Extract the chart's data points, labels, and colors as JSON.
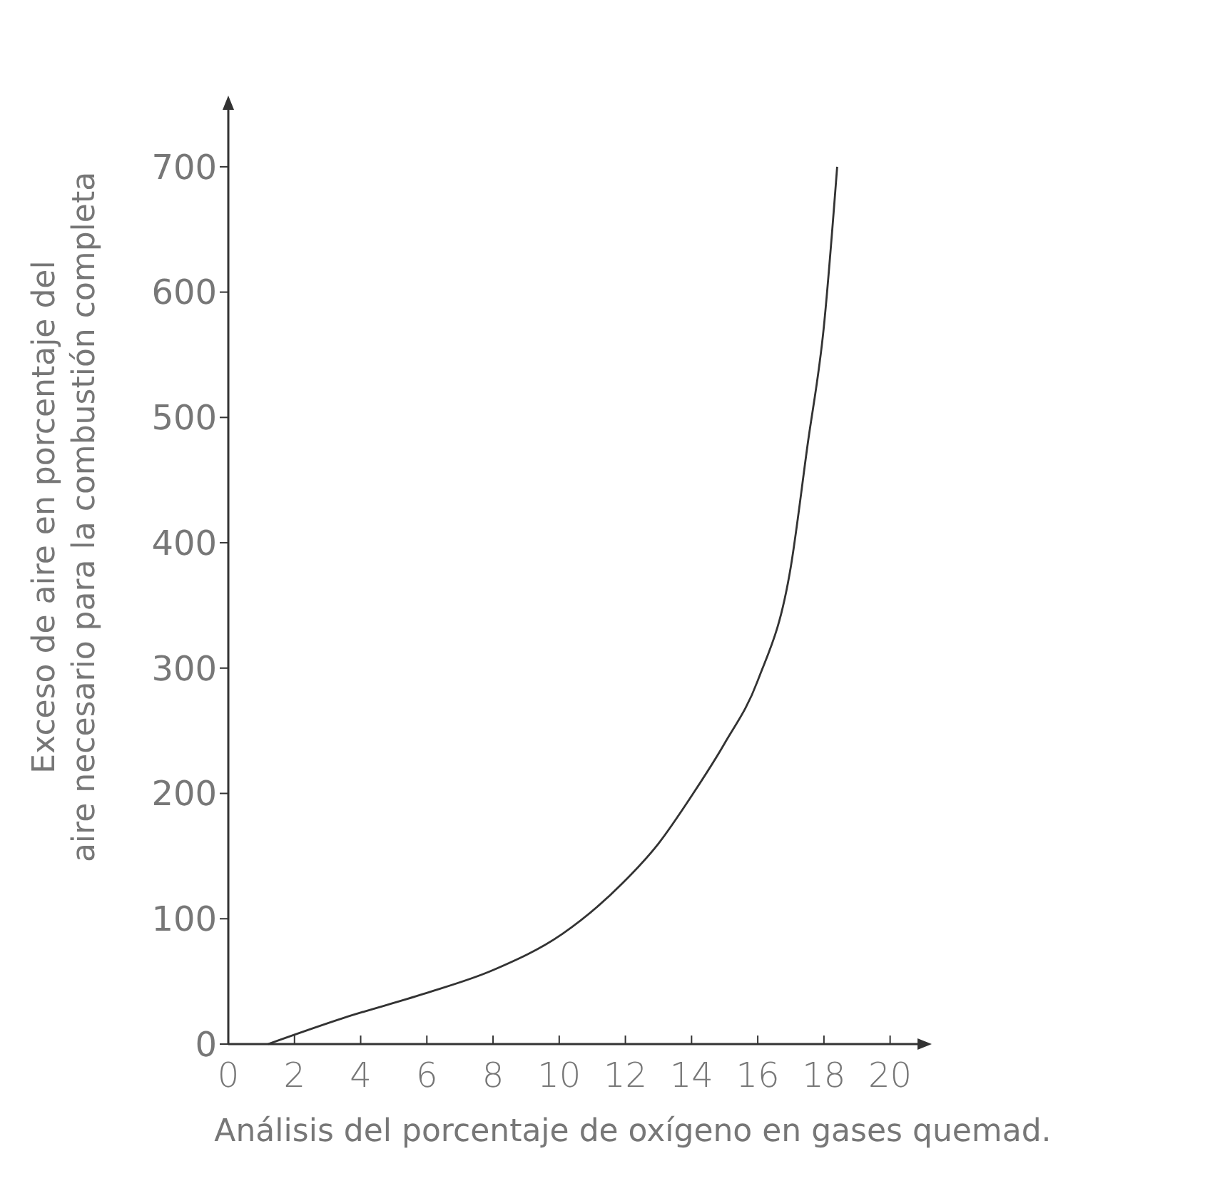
{
  "chart_data": {
    "type": "line",
    "xlabel": "Análisis del porcentaje de oxígeno en gases quemad.",
    "ylabel": "Exceso de aire en porcentaje del\naire necesario para la combustión completa",
    "x": [
      1.2,
      3.5,
      5.9,
      8,
      10.1,
      11.9,
      13,
      14,
      15,
      16,
      17,
      17.5,
      18,
      18.4
    ],
    "series": [
      {
        "color": "#333333",
        "values": [
          0,
          21,
          40,
          59,
          88,
          128,
          160,
          198,
          240,
          290,
          381,
          477,
          573,
          700
        ]
      }
    ],
    "xlim": [
      0,
      21
    ],
    "xticks": [
      0,
      2,
      4,
      6,
      8,
      10,
      12,
      14,
      16,
      18,
      20
    ],
    "ylim": [
      0,
      750
    ],
    "yticks": [
      0,
      100,
      200,
      300,
      400,
      500,
      600,
      700
    ],
    "grid": false,
    "marker": "none",
    "line_style": "solid"
  }
}
